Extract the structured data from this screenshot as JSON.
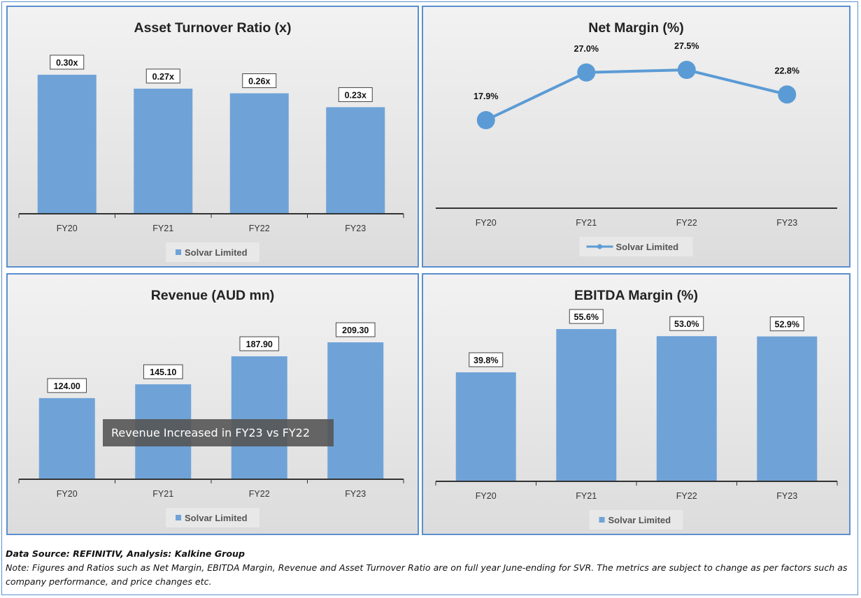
{
  "charts": [
    {
      "title": "Asset Turnover Ratio (x)",
      "chart_data": {
        "type": "bar",
        "title": "Asset Turnover Ratio (x)",
        "categories": [
          "FY20",
          "FY21",
          "FY22",
          "FY23"
        ],
        "series": [
          {
            "name": "Solvar Limited",
            "values": [
              0.3,
              0.27,
              0.26,
              0.23
            ]
          }
        ],
        "data_labels": [
          "0.30x",
          "0.27x",
          "0.26x",
          "0.23x"
        ],
        "ylim": [
          0,
          0.3
        ],
        "legend": "bottom",
        "grid": false
      }
    },
    {
      "title": "Net Margin (%)",
      "chart_data": {
        "type": "line",
        "title": "Net Margin (%)",
        "categories": [
          "FY20",
          "FY21",
          "FY22",
          "FY23"
        ],
        "series": [
          {
            "name": "Solvar Limited",
            "values": [
              17.9,
              27.0,
              27.5,
              22.8
            ]
          }
        ],
        "data_labels": [
          "17.9%",
          "27.0%",
          "27.5%",
          "22.8%"
        ],
        "ylim": [
          0,
          27.5
        ],
        "legend": "bottom",
        "grid": false
      }
    },
    {
      "title": "Revenue (AUD mn)",
      "chart_data": {
        "type": "bar",
        "title": "Revenue (AUD mn)",
        "categories": [
          "FY20",
          "FY21",
          "FY22",
          "FY23"
        ],
        "series": [
          {
            "name": "Solvar Limited",
            "values": [
              124.0,
              145.1,
              187.9,
              209.3
            ]
          }
        ],
        "data_labels": [
          "124.00",
          "145.10",
          "187.90",
          "209.30"
        ],
        "ylim": [
          0,
          209.3
        ],
        "legend": "bottom",
        "grid": false,
        "annotation": "Revenue Increased in FY23 vs FY22"
      }
    },
    {
      "title": "EBITDA Margin (%)",
      "chart_data": {
        "type": "bar",
        "title": "EBITDA Margin (%)",
        "categories": [
          "FY20",
          "FY21",
          "FY22",
          "FY23"
        ],
        "series": [
          {
            "name": "Solvar Limited",
            "values": [
              39.8,
              55.6,
              53.0,
              52.9
            ]
          }
        ],
        "data_labels": [
          "39.8%",
          "55.6%",
          "53.0%",
          "52.9%"
        ],
        "ylim": [
          0,
          55.6
        ],
        "legend": "bottom",
        "grid": false
      }
    }
  ],
  "colors": {
    "bar": "#6fa3d8",
    "line": "#5b9bd5",
    "axis": "#333333",
    "panel_border": "#5b8fd0",
    "annotation_bg": "#555555"
  },
  "footer": {
    "source": "Data Source: REFINITIV, Analysis: Kalkine Group",
    "note": "Note: Figures and Ratios such as Net Margin, EBITDA Margin, Revenue and Asset Turnover Ratio are on full year June-ending for SVR. The metrics are subject to change as per factors such as company performance, and price changes etc."
  }
}
